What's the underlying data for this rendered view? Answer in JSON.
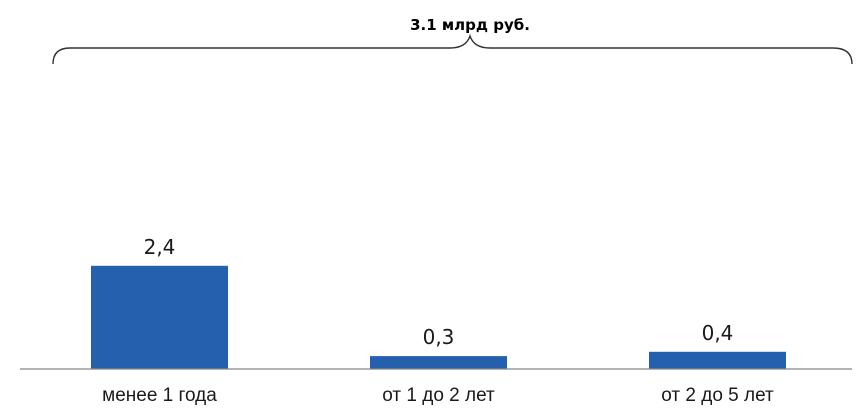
{
  "chart_data": {
    "type": "bar",
    "categories": [
      "менее 1 года",
      "от 1 до 2 лет",
      "от 2 до 5 лет"
    ],
    "values": [
      2.4,
      0.3,
      0.4
    ],
    "value_labels": [
      "2,4",
      "0,3",
      "0,4"
    ],
    "total_annotation": "3.1 млрд руб.",
    "title": "",
    "xlabel": "",
    "ylabel": "",
    "ylim": [
      0,
      4
    ],
    "grid": false,
    "legend": "none",
    "colors": {
      "bar": "#2460ae",
      "axis": "#888888",
      "brace": "#333333"
    }
  }
}
